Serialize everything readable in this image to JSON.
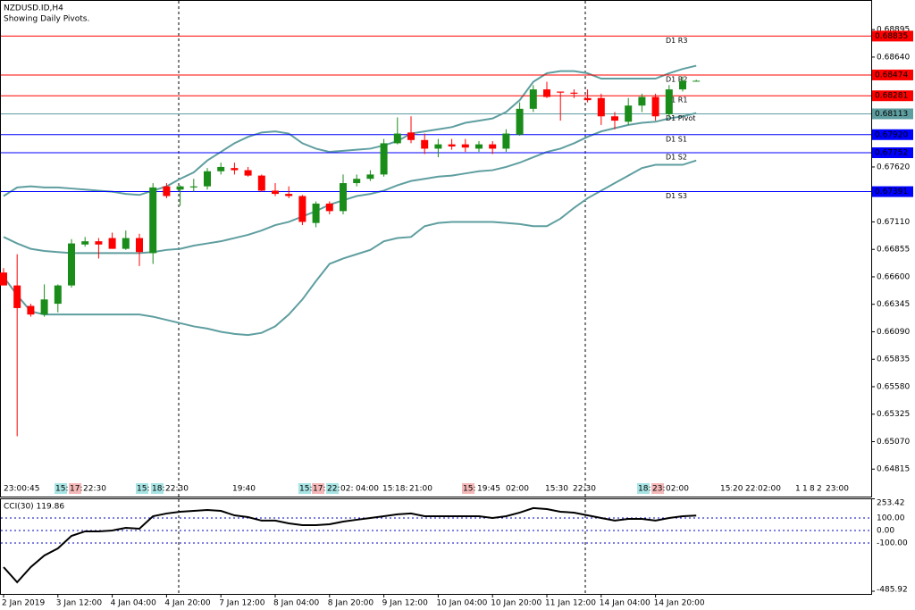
{
  "chart_data": [
    {
      "type": "candlestick",
      "title": "NZDUSD.ID,H4",
      "subtitle": "Showing Daily Pivots.",
      "categories": [
        "2 Jan 2019",
        null,
        null,
        null,
        "3 Jan 12:00",
        null,
        null,
        null,
        "4 Jan 04:00",
        null,
        null,
        null,
        "4 Jan 20:00",
        null,
        null,
        null,
        "7 Jan 12:00",
        null,
        null,
        null,
        "8 Jan 04:00",
        null,
        null,
        null,
        "8 Jan 20:00",
        null,
        null,
        null,
        "9 Jan 12:00",
        null,
        null,
        null,
        "10 Jan 04:00",
        null,
        null,
        null,
        "10 Jan 20:00",
        null,
        null,
        null,
        "11 Jan 12:00",
        null,
        null,
        null,
        "14 Jan 04:00",
        null,
        null,
        null,
        "14 Jan 20:00",
        null,
        null,
        null
      ],
      "open": [
        0.6664,
        0.6652,
        0.6633,
        0.6625,
        0.6635,
        0.6652,
        0.669,
        0.6693,
        0.6696,
        0.6686,
        0.6696,
        0.6682,
        0.6744,
        0.6741,
        0.6743,
        0.6744,
        0.6758,
        0.6761,
        0.6759,
        0.6754,
        0.674,
        0.6737,
        0.6735,
        0.671,
        0.6728,
        0.6721,
        0.6747,
        0.6751,
        0.6755,
        0.6784,
        0.6794,
        0.6787,
        0.6779,
        0.6783,
        0.6783,
        0.6779,
        0.6783,
        0.6779,
        0.6792,
        0.6816,
        0.6834,
        0.6832,
        0.6831,
        0.6826,
        0.6826,
        0.6809,
        0.6804,
        0.6819,
        0.6827,
        0.6811,
        0.6834,
        0.6842
      ],
      "high": [
        0.6668,
        0.6681,
        0.6635,
        0.6653,
        0.6653,
        0.6695,
        0.6697,
        0.6696,
        0.6701,
        0.6703,
        0.67,
        0.6747,
        0.6747,
        0.6745,
        0.6751,
        0.6761,
        0.6766,
        0.6766,
        0.6762,
        0.6755,
        0.6747,
        0.6744,
        0.6736,
        0.673,
        0.673,
        0.6755,
        0.6755,
        0.6759,
        0.6788,
        0.6808,
        0.6809,
        0.6793,
        0.6788,
        0.6788,
        0.6788,
        0.6786,
        0.6786,
        0.6797,
        0.6822,
        0.6838,
        0.6841,
        0.6832,
        0.6834,
        0.6834,
        0.683,
        0.6813,
        0.6826,
        0.683,
        0.683,
        0.6838,
        0.6846,
        0.6843
      ],
      "low": [
        0.6652,
        0.6512,
        0.6623,
        0.6623,
        0.6627,
        0.665,
        0.6688,
        0.6677,
        0.6686,
        0.6685,
        0.667,
        0.6672,
        0.6733,
        0.6726,
        0.6739,
        0.6741,
        0.6755,
        0.6755,
        0.6753,
        0.6739,
        0.6735,
        0.6733,
        0.6708,
        0.6706,
        0.6718,
        0.6718,
        0.6744,
        0.6749,
        0.6753,
        0.6783,
        0.6784,
        0.6774,
        0.6771,
        0.6778,
        0.6776,
        0.6776,
        0.6774,
        0.6776,
        0.6791,
        0.6813,
        0.6826,
        0.6805,
        0.6826,
        0.6822,
        0.6801,
        0.6797,
        0.6801,
        0.6813,
        0.6805,
        0.6808,
        0.6832,
        0.6842
      ],
      "close": [
        0.6652,
        0.6631,
        0.6625,
        0.6639,
        0.6652,
        0.6691,
        0.6693,
        0.669,
        0.6686,
        0.6696,
        0.6683,
        0.6743,
        0.6735,
        0.6744,
        0.6744,
        0.6758,
        0.6762,
        0.6759,
        0.6754,
        0.674,
        0.6737,
        0.6735,
        0.6711,
        0.6728,
        0.6721,
        0.6747,
        0.6751,
        0.6755,
        0.6784,
        0.6793,
        0.6787,
        0.6779,
        0.6783,
        0.6781,
        0.678,
        0.6783,
        0.6779,
        0.6793,
        0.6816,
        0.6834,
        0.6827,
        0.6831,
        0.683,
        0.6824,
        0.6809,
        0.6805,
        0.6819,
        0.6827,
        0.6809,
        0.6834,
        0.6842,
        0.6842
      ],
      "up_color": "#1a8c1a",
      "down_color": "#ff0000",
      "bands": [
        {
          "color": "#5f9ea0",
          "values": [
            0.6735,
            0.6743,
            0.6744,
            0.6743,
            0.6743,
            0.6742,
            0.6741,
            0.674,
            0.6739,
            0.6737,
            0.6736,
            0.674,
            0.6744,
            0.6751,
            0.6757,
            0.6768,
            0.6776,
            0.6784,
            0.679,
            0.6794,
            0.6795,
            0.6793,
            0.6784,
            0.6779,
            0.6776,
            0.6777,
            0.6778,
            0.6779,
            0.6782,
            0.6786,
            0.6793,
            0.6795,
            0.6797,
            0.6799,
            0.6803,
            0.6805,
            0.6807,
            0.6813,
            0.6824,
            0.6841,
            0.6849,
            0.6851,
            0.6851,
            0.6849,
            0.6844,
            0.6844,
            0.6844,
            0.6844,
            0.6844,
            0.6849,
            0.6853,
            0.6856
          ]
        },
        {
          "color": "#5f9ea0",
          "values": [
            0.6697,
            0.6691,
            0.6686,
            0.6684,
            0.6683,
            0.6682,
            0.6682,
            0.6682,
            0.6682,
            0.6682,
            0.6682,
            0.6683,
            0.6685,
            0.6686,
            0.6689,
            0.6691,
            0.6693,
            0.6696,
            0.6699,
            0.6703,
            0.6708,
            0.6711,
            0.6716,
            0.6721,
            0.6727,
            0.6731,
            0.6735,
            0.6737,
            0.674,
            0.6745,
            0.6749,
            0.6751,
            0.6753,
            0.6754,
            0.6756,
            0.6758,
            0.6759,
            0.6762,
            0.6766,
            0.6771,
            0.6776,
            0.6779,
            0.6784,
            0.679,
            0.6795,
            0.6798,
            0.6801,
            0.6803,
            0.6804,
            0.6807,
            0.6809,
            0.6812
          ]
        },
        {
          "color": "#5f9ea0",
          "values": [
            0.666,
            0.6643,
            0.6628,
            0.6625,
            0.6625,
            0.6625,
            0.6625,
            0.6625,
            0.6625,
            0.6625,
            0.6625,
            0.6623,
            0.662,
            0.6617,
            0.6614,
            0.6612,
            0.6609,
            0.6607,
            0.6606,
            0.6608,
            0.6614,
            0.6625,
            0.6639,
            0.6656,
            0.6672,
            0.6677,
            0.6681,
            0.6685,
            0.6693,
            0.6696,
            0.6697,
            0.6707,
            0.671,
            0.6711,
            0.6711,
            0.6711,
            0.6711,
            0.671,
            0.6709,
            0.6707,
            0.6707,
            0.6714,
            0.6724,
            0.6733,
            0.674,
            0.6747,
            0.6754,
            0.6761,
            0.6764,
            0.6764,
            0.6764,
            0.6768
          ]
        }
      ],
      "pivots": [
        {
          "label": "D1 R3",
          "value": 0.68835,
          "color": "#ff0000"
        },
        {
          "label": "D1 R2",
          "value": 0.68474,
          "color": "#ff0000"
        },
        {
          "label": "D1 R1",
          "value": 0.68281,
          "color": "#ff0000"
        },
        {
          "label": "D1 Pivot",
          "value": 0.68113,
          "color": "#5f9ea0"
        },
        {
          "label": "D1 S1",
          "value": 0.6792,
          "value_label": "0.67920",
          "color": "#0000ff"
        },
        {
          "label": "D1 S2",
          "value": 0.67752,
          "color": "#0000ff"
        },
        {
          "label": "D1 S3",
          "value": 0.67391,
          "color": "#0000ff"
        }
      ],
      "time_markers": [
        "23:00:45",
        "15:",
        "17:",
        "22:30",
        "15:",
        "18:",
        "22:30",
        "19:40",
        "15:",
        "17:",
        "22:",
        "02:",
        "04:00",
        "15:",
        "18:",
        "21:00",
        "15:",
        "19:45",
        "02:00",
        "15:30",
        "22:30",
        "18:",
        "23:",
        "02:00",
        "15:",
        "20",
        "22:",
        "02:00",
        "1",
        "1",
        "8",
        "2",
        "23:00"
      ],
      "ylim": [
        0.6456,
        0.6917
      ],
      "yticks": [
        0.68895,
        {
          "value": 0.6864,
          "label": "0.68640"
        },
        {
          "value": 0.6762,
          "label": "0.67620"
        },
        {
          "value": 0.6711,
          "label": "0.67110"
        },
        0.66855,
        {
          "value": 0.666,
          "label": "0.66600"
        },
        0.66345,
        {
          "value": 0.6609,
          "label": "0.66090"
        },
        0.65835,
        {
          "value": 0.6558,
          "label": "0.65580"
        },
        0.65325,
        {
          "value": 0.6507,
          "label": "0.65070"
        },
        0.64815
      ]
    },
    {
      "type": "line",
      "title": "CCI(30) 119.86",
      "color": "#000000",
      "values": [
        -293,
        -414,
        -293,
        -200,
        -143,
        -43,
        -7,
        -7,
        0,
        21,
        14,
        114,
        136,
        150,
        157,
        164,
        157,
        121,
        107,
        79,
        79,
        57,
        43,
        43,
        50,
        71,
        86,
        100,
        114,
        129,
        136,
        114,
        114,
        114,
        114,
        114,
        100,
        114,
        143,
        179,
        171,
        150,
        143,
        121,
        100,
        79,
        93,
        93,
        79,
        100,
        114,
        119.86
      ],
      "ylim": [
        -485.92,
        253.42
      ],
      "yticks": [
        {
          "value": 253.42,
          "label": "253.42"
        },
        {
          "value": 100,
          "label": "100.00"
        },
        {
          "value": 0,
          "label": "0.00"
        },
        {
          "value": -100,
          "label": "-100.00"
        },
        {
          "value": -485.92,
          "label": "-485.92"
        }
      ]
    }
  ]
}
